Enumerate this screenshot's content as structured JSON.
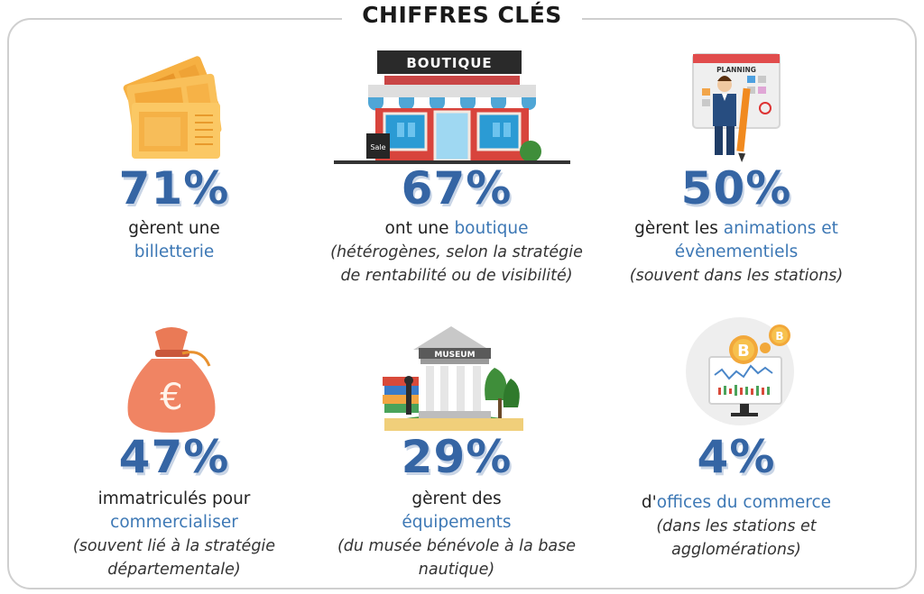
{
  "title": "CHIFFRES CLÉS",
  "stats": [
    {
      "value": "71%",
      "text": "gèrent une",
      "highlight": "billetterie",
      "note": "",
      "icon": "ticket-icon"
    },
    {
      "value": "67%",
      "text": "ont une",
      "highlight": "boutique",
      "note": "(hétérogènes, selon la stratégie de rentabilité ou de visibilité)",
      "icon": "shop-icon",
      "sign": "BOUTIQUE",
      "sale": "Sale"
    },
    {
      "value": "50%",
      "text": "gèrent les",
      "highlight": "animations et évènementiels",
      "note": "(souvent dans les stations)",
      "icon": "planning-icon",
      "board": "PLANNING"
    },
    {
      "value": "47%",
      "text": "immatriculés pour",
      "highlight": "commercialiser",
      "note": "(souvent lié à la stratégie départementale)",
      "icon": "money-bag-icon",
      "symbol": "€"
    },
    {
      "value": "29%",
      "text": "gèrent des",
      "highlight": "équipements",
      "note": "(du musée bénévole à la base nautique)",
      "icon": "museum-icon",
      "sign": "MUSEUM"
    },
    {
      "value": "4%",
      "text": "d'",
      "highlight": "offices du commerce",
      "note": "(dans les stations et agglomérations)",
      "icon": "bitcoin-monitor-icon",
      "symbol": "B"
    }
  ],
  "colors": {
    "accent": "#3565a4",
    "highlight": "#3d78b5",
    "frame": "#cfcfcf"
  }
}
